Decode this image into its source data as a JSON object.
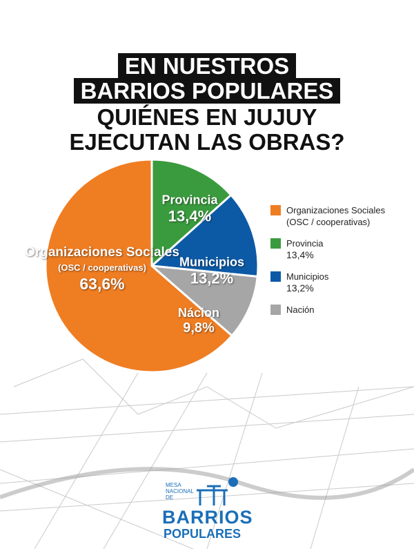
{
  "title": {
    "line1": "EN NUESTROS",
    "line2": "BARRIOS POPULARES",
    "line3": "QUIÉNES EN JUJUY",
    "line4": "EJECUTAN LAS OBRAS?"
  },
  "chart_data": {
    "type": "pie",
    "title": "QUIÉNES EN JUJUY EJECUTAN LAS OBRAS?",
    "slices": [
      {
        "name": "Provincia",
        "value": 13.4,
        "label": "13,4%",
        "color": "#3a9b3e"
      },
      {
        "name": "Municipios",
        "value": 13.2,
        "label": "13,2%",
        "color": "#0c5aa6"
      },
      {
        "name": "Nácion",
        "value": 9.8,
        "label": "9,8%",
        "color": "#a6a6a6"
      },
      {
        "name": "Organizaciones Sociales",
        "sub": "(OSC / cooperativas)",
        "value": 63.6,
        "label": "63,6%",
        "color": "#ef7d22"
      }
    ],
    "legend": [
      {
        "label": "Organizaciones Sociales",
        "label2": "(OSC / cooperativas)",
        "color": "#ef7d22"
      },
      {
        "label": "Provincia",
        "value": "13,4%",
        "color": "#3a9b3e"
      },
      {
        "label": "Municipios",
        "value": "13,2%",
        "color": "#0c5aa6"
      },
      {
        "label": "Nación",
        "color": "#a6a6a6"
      }
    ],
    "legend_position": "right"
  },
  "logo": {
    "line1": "MESA",
    "line2": "NACIONAL",
    "line3": "DE",
    "line4": "BARRIOS",
    "line5": "POPULARES"
  }
}
